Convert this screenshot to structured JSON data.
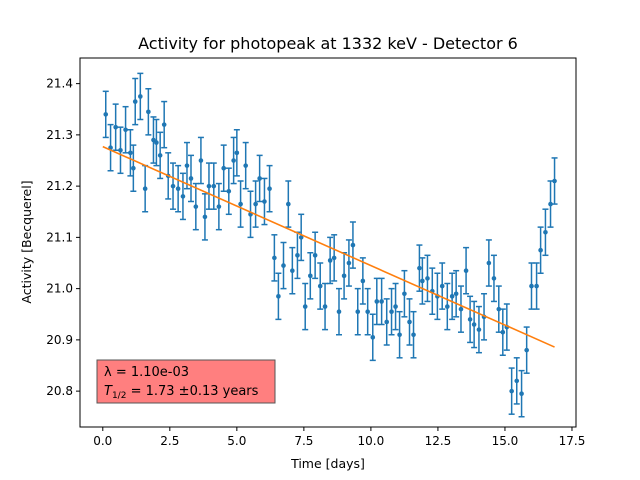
{
  "chart_data": {
    "type": "scatter",
    "title": "Activity for photopeak at 1332 keV - Detector 6",
    "xlabel": "Time [days]",
    "ylabel": "Activity [Becquerel]",
    "xlim": [
      -0.85,
      17.65
    ],
    "ylim": [
      20.73,
      21.45
    ],
    "xticks": [
      0.0,
      2.5,
      5.0,
      7.5,
      10.0,
      12.5,
      15.0,
      17.5
    ],
    "xtick_labels": [
      "0.0",
      "2.5",
      "5.0",
      "7.5",
      "10.0",
      "12.5",
      "15.0",
      "17.5"
    ],
    "yticks": [
      20.8,
      20.9,
      21.0,
      21.1,
      21.2,
      21.3,
      21.4
    ],
    "ytick_labels": [
      "20.8",
      "20.9",
      "21.0",
      "21.1",
      "21.2",
      "21.3",
      "21.4"
    ],
    "grid": false,
    "legend": "none",
    "series": [
      {
        "kind": "errorbar",
        "color": "#1f77b4",
        "error": 0.045,
        "points": [
          [
            0.11,
            21.34
          ],
          [
            0.29,
            21.275
          ],
          [
            0.48,
            21.315
          ],
          [
            0.66,
            21.27
          ],
          [
            0.85,
            21.31
          ],
          [
            1.03,
            21.265
          ],
          [
            1.14,
            21.235
          ],
          [
            1.21,
            21.365
          ],
          [
            1.4,
            21.375
          ],
          [
            1.58,
            21.195
          ],
          [
            1.7,
            21.345
          ],
          [
            1.89,
            21.29
          ],
          [
            2.0,
            21.285
          ],
          [
            2.14,
            21.26
          ],
          [
            2.29,
            21.32
          ],
          [
            2.44,
            21.22
          ],
          [
            2.62,
            21.2
          ],
          [
            2.81,
            21.195
          ],
          [
            2.99,
            21.18
          ],
          [
            3.14,
            21.24
          ],
          [
            3.29,
            21.215
          ],
          [
            3.47,
            21.16
          ],
          [
            3.66,
            21.25
          ],
          [
            3.81,
            21.14
          ],
          [
            3.96,
            21.2
          ],
          [
            4.14,
            21.2
          ],
          [
            4.33,
            21.16
          ],
          [
            4.51,
            21.235
          ],
          [
            4.7,
            21.19
          ],
          [
            4.88,
            21.25
          ],
          [
            5.0,
            21.265
          ],
          [
            5.14,
            21.165
          ],
          [
            5.33,
            21.24
          ],
          [
            5.51,
            21.145
          ],
          [
            5.7,
            21.165
          ],
          [
            5.85,
            21.215
          ],
          [
            6.03,
            21.17
          ],
          [
            6.22,
            21.195
          ],
          [
            6.4,
            21.06
          ],
          [
            6.55,
            20.985
          ],
          [
            6.74,
            21.045
          ],
          [
            6.92,
            21.165
          ],
          [
            7.07,
            21.035
          ],
          [
            7.26,
            21.065
          ],
          [
            7.4,
            21.1
          ],
          [
            7.55,
            20.965
          ],
          [
            7.74,
            21.025
          ],
          [
            7.92,
            21.065
          ],
          [
            8.11,
            21.005
          ],
          [
            8.29,
            20.965
          ],
          [
            8.48,
            21.055
          ],
          [
            8.63,
            21.06
          ],
          [
            8.81,
            20.955
          ],
          [
            9.0,
            21.025
          ],
          [
            9.18,
            21.05
          ],
          [
            9.33,
            21.085
          ],
          [
            9.51,
            20.955
          ],
          [
            9.7,
            21.015
          ],
          [
            9.88,
            20.955
          ],
          [
            10.07,
            20.905
          ],
          [
            10.22,
            20.975
          ],
          [
            10.4,
            20.975
          ],
          [
            10.59,
            20.935
          ],
          [
            10.77,
            20.955
          ],
          [
            10.92,
            20.965
          ],
          [
            11.07,
            20.91
          ],
          [
            11.25,
            20.99
          ],
          [
            11.44,
            20.935
          ],
          [
            11.59,
            20.91
          ],
          [
            11.81,
            21.04
          ],
          [
            11.92,
            21.015
          ],
          [
            12.11,
            21.02
          ],
          [
            12.29,
            20.995
          ],
          [
            12.48,
            20.985
          ],
          [
            12.66,
            21.005
          ],
          [
            12.85,
            20.965
          ],
          [
            13.03,
            20.985
          ],
          [
            13.18,
            20.99
          ],
          [
            13.36,
            20.96
          ],
          [
            13.55,
            21.035
          ],
          [
            13.7,
            20.94
          ],
          [
            13.85,
            20.93
          ],
          [
            14.03,
            20.92
          ],
          [
            14.22,
            20.945
          ],
          [
            14.4,
            21.05
          ],
          [
            14.59,
            21.02
          ],
          [
            14.77,
            20.96
          ],
          [
            14.92,
            20.915
          ],
          [
            15.07,
            20.925
          ],
          [
            15.25,
            20.8
          ],
          [
            15.44,
            20.82
          ],
          [
            15.62,
            20.795
          ],
          [
            15.81,
            20.88
          ],
          [
            15.99,
            21.005
          ],
          [
            16.18,
            21.005
          ],
          [
            16.33,
            21.075
          ],
          [
            16.51,
            21.11
          ],
          [
            16.7,
            21.165
          ],
          [
            16.85,
            21.21
          ]
        ]
      },
      {
        "kind": "line",
        "color": "#ff7f0e",
        "x": [
          0.0,
          16.85
        ],
        "y": [
          21.277,
          20.886
        ]
      }
    ],
    "annotation": {
      "line1": "λ = 1.10e-03",
      "line2_symbol": "T",
      "line2_subscript": "1/2",
      "line2_value": " = 1.73 ±0.13 years",
      "background_color": "#ff7f7f",
      "position": "lower-left"
    }
  }
}
